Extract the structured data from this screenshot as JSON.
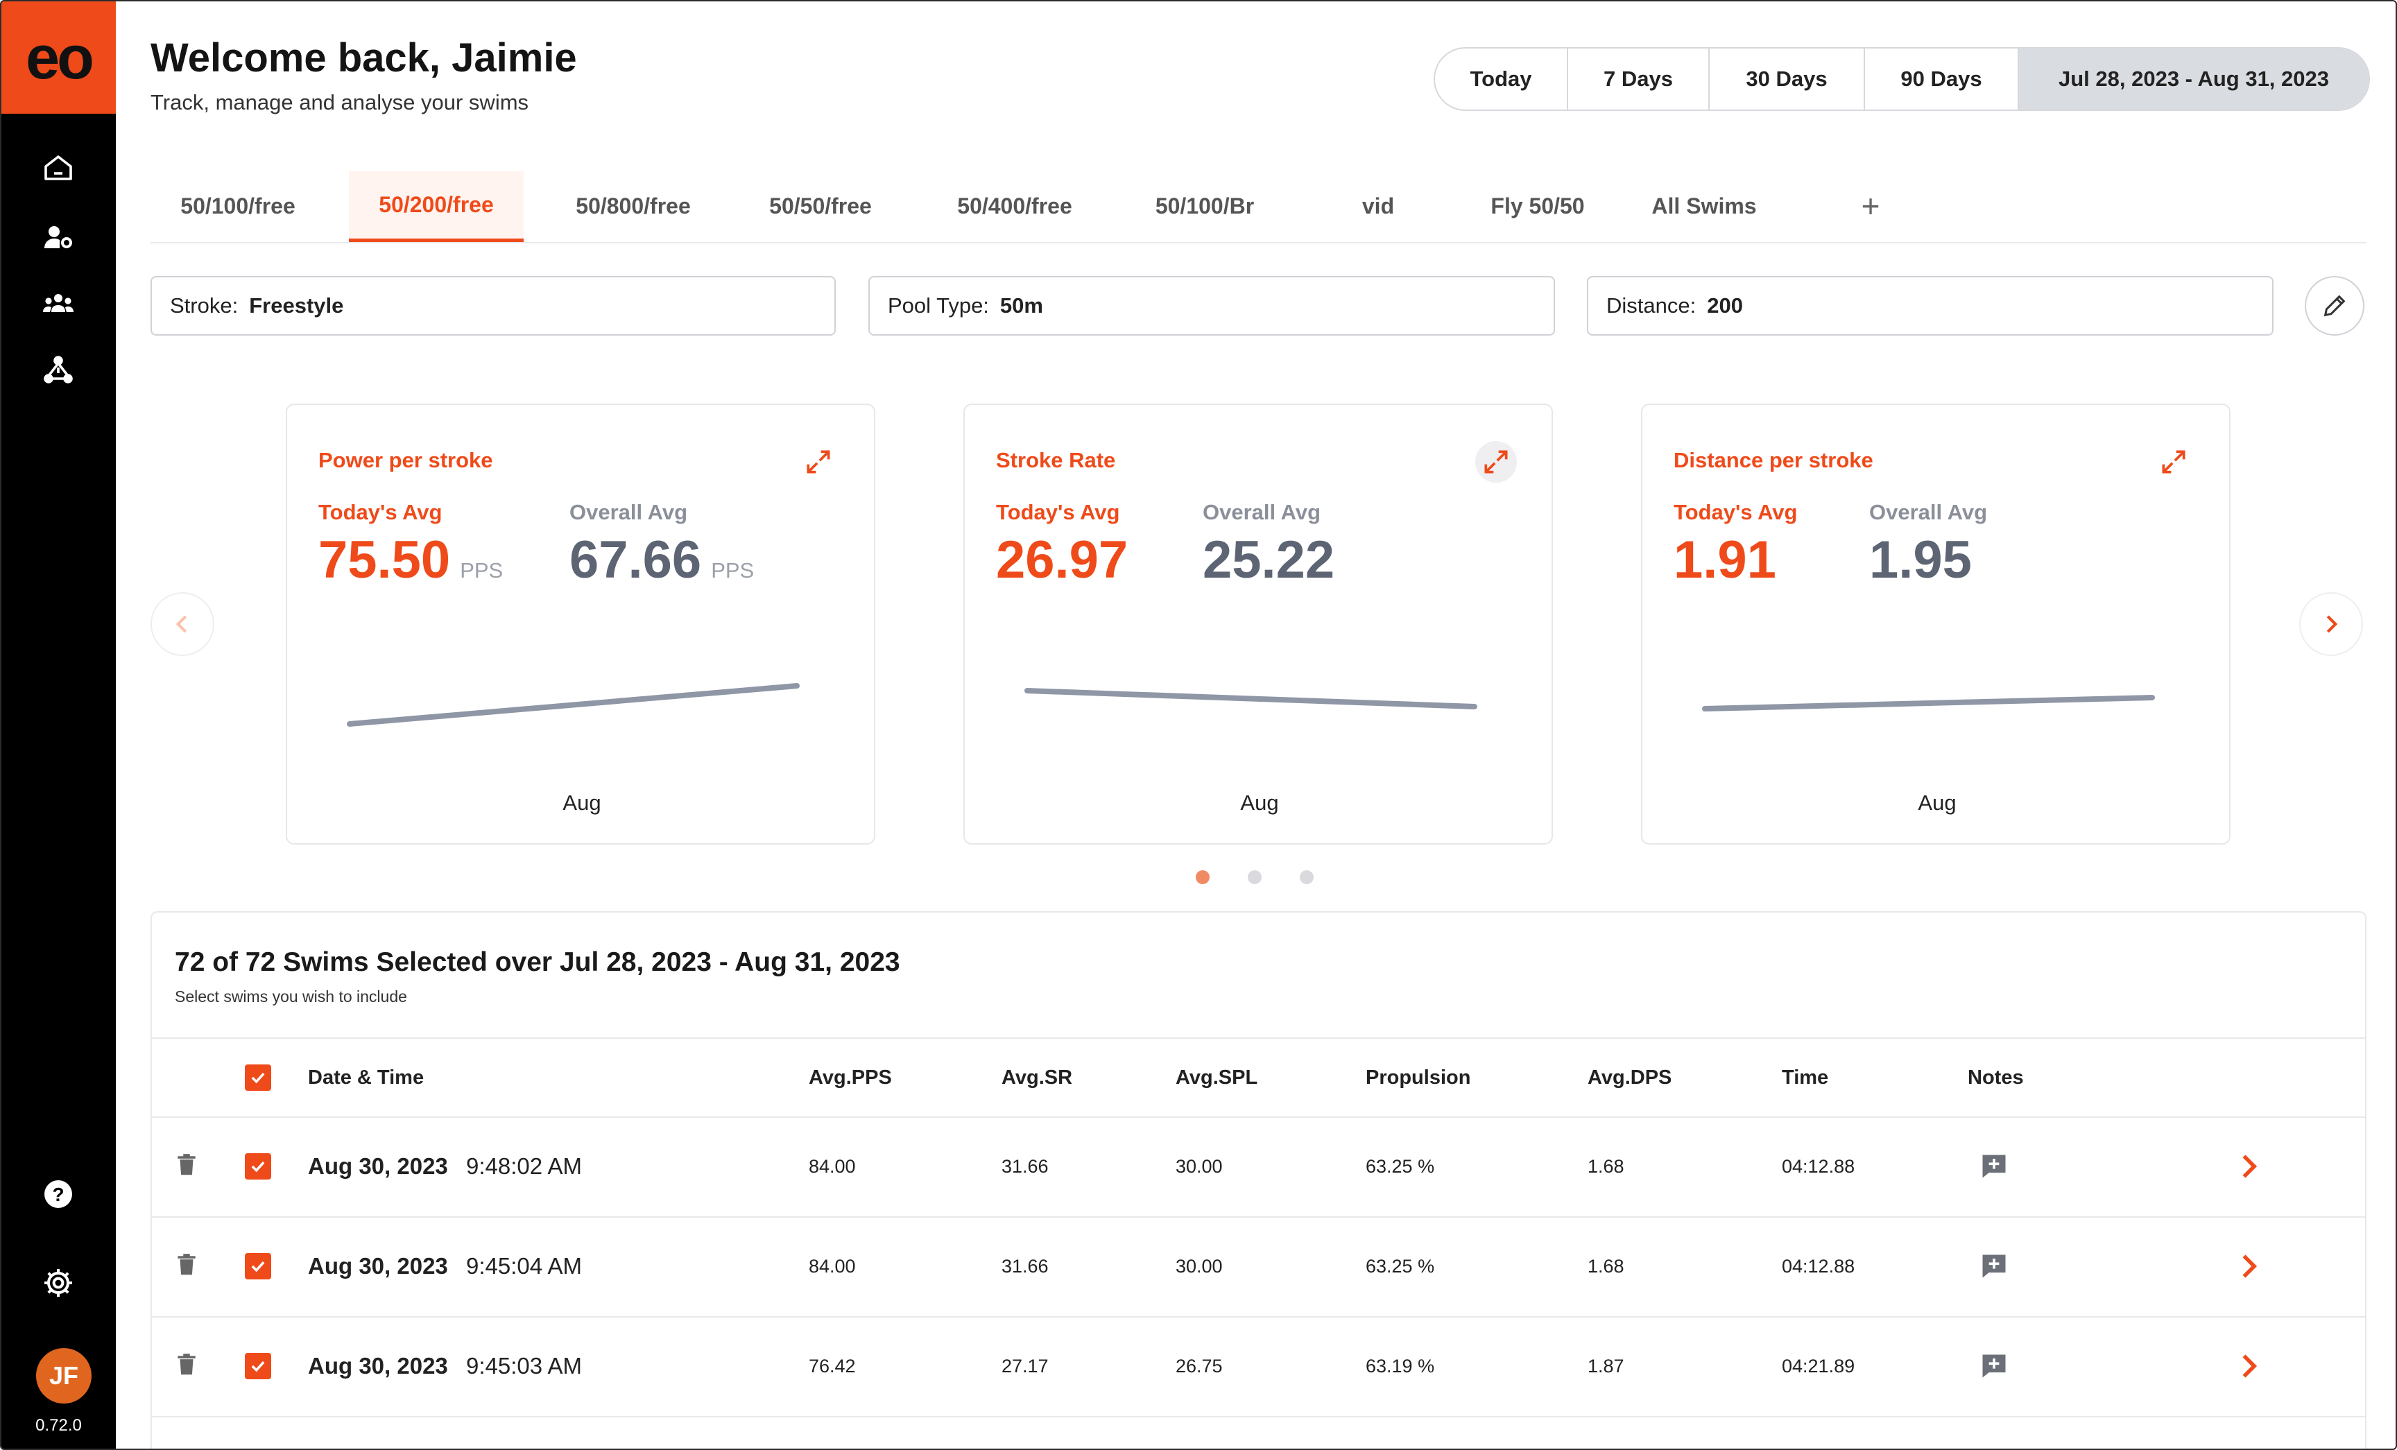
{
  "app": {
    "logo_text": "eo",
    "version": "0.72.0",
    "user_initials": "JF",
    "accent_color": "#ef4a1a"
  },
  "sidebar": {
    "items": [
      {
        "name": "home",
        "icon": "home-icon"
      },
      {
        "name": "athlete-settings",
        "icon": "user-gear-icon"
      },
      {
        "name": "team",
        "icon": "group-icon"
      },
      {
        "name": "network",
        "icon": "network-icon"
      },
      {
        "name": "help",
        "icon": "help-icon"
      },
      {
        "name": "settings",
        "icon": "gear-icon"
      }
    ]
  },
  "header": {
    "title": "Welcome back, Jaimie",
    "subtitle": "Track, manage and analyse your swims",
    "range_options": [
      "Today",
      "7 Days",
      "30 Days",
      "90 Days",
      "Jul 28, 2023 - Aug 31, 2023"
    ],
    "selected_range": "Jul 28, 2023 - Aug 31, 2023"
  },
  "tabs": {
    "items": [
      "50/100/free",
      "50/200/free",
      "50/800/free",
      "50/50/free",
      "50/400/free",
      "50/100/Br",
      "vid",
      "Fly 50/50",
      "All Swims"
    ],
    "active": "50/200/free",
    "add_label": "+"
  },
  "filters": {
    "stroke": {
      "label": "Stroke:",
      "value": "Freestyle"
    },
    "pool": {
      "label": "Pool Type:",
      "value": "50m"
    },
    "distance": {
      "label": "Distance:",
      "value": "200"
    }
  },
  "cards": [
    {
      "title": "Power per stroke",
      "today_label": "Today's Avg",
      "today_value": "75.50",
      "overall_label": "Overall Avg",
      "overall_value": "67.66",
      "unit": "PPS",
      "month": "Aug",
      "trend_start": 0.3,
      "trend_end": 0.85
    },
    {
      "title": "Stroke Rate",
      "today_label": "Today's Avg",
      "today_value": "26.97",
      "overall_label": "Overall Avg",
      "overall_value": "25.22",
      "unit": "",
      "month": "Aug",
      "trend_start": 0.78,
      "trend_end": 0.55
    },
    {
      "title": "Distance per stroke",
      "today_label": "Today's Avg",
      "today_value": "1.91",
      "overall_label": "Overall Avg",
      "overall_value": "1.95",
      "unit": "",
      "month": "Aug",
      "trend_start": 0.52,
      "trend_end": 0.68
    }
  ],
  "carousel": {
    "page_count": 3,
    "active_page": 1
  },
  "swims": {
    "title": "72 of 72 Swims Selected over Jul 28, 2023 - Aug 31, 2023",
    "subtitle": "Select swims you wish to include",
    "columns": [
      "Date & Time",
      "Avg.PPS",
      "Avg.SR",
      "Avg.SPL",
      "Propulsion",
      "Avg.DPS",
      "Time",
      "Notes"
    ],
    "rows": [
      {
        "date": "Aug 30, 2023",
        "time": "9:48:02 AM",
        "pps": "84.00",
        "sr": "31.66",
        "spl": "30.00",
        "propulsion": "63.25 %",
        "dps": "1.68",
        "duration": "04:12.88",
        "selected": true
      },
      {
        "date": "Aug 30, 2023",
        "time": "9:45:04 AM",
        "pps": "84.00",
        "sr": "31.66",
        "spl": "30.00",
        "propulsion": "63.25 %",
        "dps": "1.68",
        "duration": "04:12.88",
        "selected": true
      },
      {
        "date": "Aug 30, 2023",
        "time": "9:45:03 AM",
        "pps": "76.42",
        "sr": "27.17",
        "spl": "26.75",
        "propulsion": "63.19 %",
        "dps": "1.87",
        "duration": "04:21.89",
        "selected": true
      }
    ]
  }
}
